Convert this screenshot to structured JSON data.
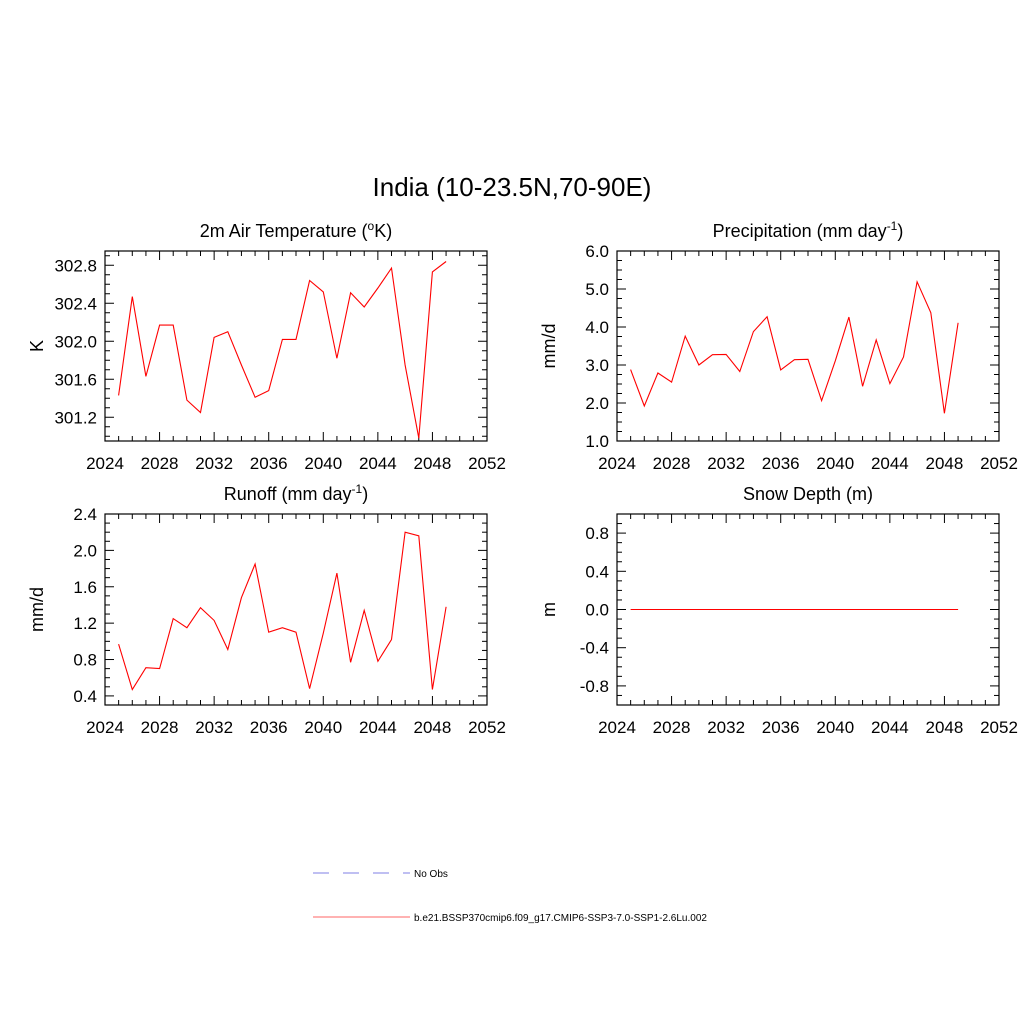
{
  "figure": {
    "title": "India (10-23.5N,70-90E)"
  },
  "colors": {
    "series": "#ff0000",
    "obs": "#aaaaee",
    "legend_model": "#ff9999"
  },
  "legend": {
    "items": [
      {
        "label": "No Obs",
        "style": "dashed"
      },
      {
        "label": "b.e21.BSSP370cmip6.f09_g17.CMIP6-SSP3-7.0-SSP1-2.6Lu.002",
        "style": "solid"
      }
    ]
  },
  "chart_data": [
    {
      "type": "line",
      "title": "2m Air Temperature (°K)",
      "title_base": "2m Air Temperature (",
      "title_sup": "o",
      "title_end": "K)",
      "xlabel": "",
      "ylabel": "K",
      "xlim": [
        2024,
        2052
      ],
      "ylim": [
        300.95,
        302.95
      ],
      "xticks": [
        2024,
        2028,
        2032,
        2036,
        2040,
        2044,
        2048,
        2052
      ],
      "yticks": [
        301.2,
        301.6,
        302.0,
        302.4,
        302.8
      ],
      "ytick_labels": [
        "301.2",
        "301.6",
        "302.0",
        "302.4",
        "302.8"
      ],
      "series": [
        {
          "name": "b.e21.BSSP370cmip6.f09_g17.CMIP6-SSP3-7.0-SSP1-2.6Lu.002",
          "x": [
            2025,
            2026,
            2027,
            2028,
            2029,
            2030,
            2031,
            2032,
            2033,
            2034,
            2035,
            2036,
            2037,
            2038,
            2039,
            2040,
            2041,
            2042,
            2043,
            2044,
            2045,
            2046,
            2047,
            2048,
            2049
          ],
          "values": [
            301.43,
            302.47,
            301.63,
            302.17,
            302.17,
            301.38,
            301.25,
            302.04,
            302.1,
            301.75,
            301.41,
            301.48,
            302.02,
            302.02,
            302.64,
            302.52,
            301.82,
            302.51,
            302.36,
            302.56,
            302.77,
            301.75,
            300.98,
            302.73,
            302.84
          ]
        }
      ]
    },
    {
      "type": "line",
      "title": "Precipitation (mm day-1)",
      "title_base": "Precipitation (mm day",
      "title_sup": "-1",
      "title_end": ")",
      "xlabel": "",
      "ylabel": "mm/d",
      "xlim": [
        2024,
        2052
      ],
      "ylim": [
        1.0,
        6.0
      ],
      "xticks": [
        2024,
        2028,
        2032,
        2036,
        2040,
        2044,
        2048,
        2052
      ],
      "yticks": [
        1.0,
        2.0,
        3.0,
        4.0,
        5.0,
        6.0
      ],
      "ytick_labels": [
        "1.0",
        "2.0",
        "3.0",
        "4.0",
        "5.0",
        "6.0"
      ],
      "series": [
        {
          "name": "b.e21.BSSP370cmip6.f09_g17.CMIP6-SSP3-7.0-SSP1-2.6Lu.002",
          "x": [
            2025,
            2026,
            2027,
            2028,
            2029,
            2030,
            2031,
            2032,
            2033,
            2034,
            2035,
            2036,
            2037,
            2038,
            2039,
            2040,
            2041,
            2042,
            2043,
            2044,
            2045,
            2046,
            2047,
            2048,
            2049
          ],
          "values": [
            2.88,
            1.92,
            2.79,
            2.55,
            3.76,
            3.0,
            3.27,
            3.28,
            2.83,
            3.88,
            4.27,
            2.87,
            3.14,
            3.15,
            2.06,
            3.11,
            4.26,
            2.44,
            3.66,
            2.51,
            3.21,
            5.19,
            4.38,
            1.73,
            4.11
          ]
        }
      ]
    },
    {
      "type": "line",
      "title": "Runoff (mm day-1)",
      "title_base": "Runoff (mm day",
      "title_sup": "-1",
      "title_end": ")",
      "xlabel": "",
      "ylabel": "mm/d",
      "xlim": [
        2024,
        2052
      ],
      "ylim": [
        0.3,
        2.4
      ],
      "xticks": [
        2024,
        2028,
        2032,
        2036,
        2040,
        2044,
        2048,
        2052
      ],
      "yticks": [
        0.4,
        0.8,
        1.2,
        1.6,
        2.0,
        2.4
      ],
      "ytick_labels": [
        "0.4",
        "0.8",
        "1.2",
        "1.6",
        "2.0",
        "2.4"
      ],
      "series": [
        {
          "name": "b.e21.BSSP370cmip6.f09_g17.CMIP6-SSP3-7.0-SSP1-2.6Lu.002",
          "x": [
            2025,
            2026,
            2027,
            2028,
            2029,
            2030,
            2031,
            2032,
            2033,
            2034,
            2035,
            2036,
            2037,
            2038,
            2039,
            2040,
            2041,
            2042,
            2043,
            2044,
            2045,
            2046,
            2047,
            2048,
            2049
          ],
          "values": [
            0.97,
            0.47,
            0.71,
            0.7,
            1.25,
            1.15,
            1.37,
            1.23,
            0.91,
            1.48,
            1.85,
            1.1,
            1.15,
            1.1,
            0.48,
            1.09,
            1.75,
            0.77,
            1.34,
            0.78,
            1.02,
            2.2,
            2.16,
            0.47,
            1.38
          ]
        }
      ]
    },
    {
      "type": "line",
      "title": "Snow Depth (m)",
      "title_base": "Snow Depth (m)",
      "title_sup": "",
      "title_end": "",
      "xlabel": "",
      "ylabel": "m",
      "xlim": [
        2024,
        2052
      ],
      "ylim": [
        -1.0,
        1.0
      ],
      "xticks": [
        2024,
        2028,
        2032,
        2036,
        2040,
        2044,
        2048,
        2052
      ],
      "yticks": [
        -0.8,
        -0.4,
        0.0,
        0.4,
        0.8
      ],
      "ytick_labels": [
        "-0.8",
        "-0.4",
        "0.0",
        "0.4",
        "0.8"
      ],
      "series": [
        {
          "name": "b.e21.BSSP370cmip6.f09_g17.CMIP6-SSP3-7.0-SSP1-2.6Lu.002",
          "x": [
            2025,
            2026,
            2027,
            2028,
            2029,
            2030,
            2031,
            2032,
            2033,
            2034,
            2035,
            2036,
            2037,
            2038,
            2039,
            2040,
            2041,
            2042,
            2043,
            2044,
            2045,
            2046,
            2047,
            2048,
            2049
          ],
          "values": [
            0,
            0,
            0,
            0,
            0,
            0,
            0,
            0,
            0,
            0,
            0,
            0,
            0,
            0,
            0,
            0,
            0,
            0,
            0,
            0,
            0,
            0,
            0,
            0,
            0
          ]
        }
      ]
    }
  ]
}
